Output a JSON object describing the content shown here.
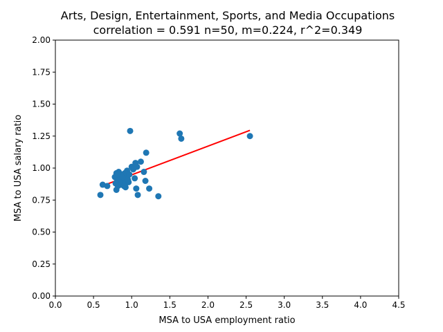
{
  "chart_data": {
    "type": "scatter",
    "title": "Arts, Design, Entertainment, Sports, and Media Occupations",
    "subtitle": "correlation = 0.591 n=50, m=0.224, r^2=0.349",
    "xlabel": "MSA to USA employment ratio",
    "ylabel": "MSA to USA salary ratio",
    "xlim": [
      0.0,
      4.5
    ],
    "ylim": [
      0.0,
      2.0
    ],
    "xticks": [
      "0.0",
      "0.5",
      "1.0",
      "1.5",
      "2.0",
      "2.5",
      "3.0",
      "3.5",
      "4.0",
      "4.5"
    ],
    "yticks": [
      "0.00",
      "0.25",
      "0.50",
      "0.75",
      "1.00",
      "1.25",
      "1.50",
      "1.75",
      "2.00"
    ],
    "grid": false,
    "point_color": "#1f77b4",
    "line_color": "#ff0000",
    "fit_line": {
      "x": [
        0.59,
        2.55
      ],
      "y": [
        0.855,
        1.295
      ]
    },
    "points": [
      {
        "x": 0.59,
        "y": 0.79
      },
      {
        "x": 0.62,
        "y": 0.87
      },
      {
        "x": 0.68,
        "y": 0.86
      },
      {
        "x": 0.78,
        "y": 0.93
      },
      {
        "x": 0.8,
        "y": 0.96
      },
      {
        "x": 0.8,
        "y": 0.83
      },
      {
        "x": 0.81,
        "y": 0.9
      },
      {
        "x": 0.82,
        "y": 0.86
      },
      {
        "x": 0.83,
        "y": 0.97
      },
      {
        "x": 0.84,
        "y": 0.94
      },
      {
        "x": 0.85,
        "y": 0.88
      },
      {
        "x": 0.86,
        "y": 0.92
      },
      {
        "x": 0.87,
        "y": 0.95
      },
      {
        "x": 0.88,
        "y": 0.87
      },
      {
        "x": 0.89,
        "y": 0.9
      },
      {
        "x": 0.9,
        "y": 0.93
      },
      {
        "x": 0.91,
        "y": 0.96
      },
      {
        "x": 0.92,
        "y": 0.85
      },
      {
        "x": 0.92,
        "y": 0.88
      },
      {
        "x": 0.93,
        "y": 0.91
      },
      {
        "x": 0.94,
        "y": 0.98
      },
      {
        "x": 0.95,
        "y": 0.94
      },
      {
        "x": 0.96,
        "y": 0.89
      },
      {
        "x": 0.98,
        "y": 1.29
      },
      {
        "x": 1.0,
        "y": 1.01
      },
      {
        "x": 1.02,
        "y": 0.99
      },
      {
        "x": 1.03,
        "y": 1.0
      },
      {
        "x": 1.04,
        "y": 0.92
      },
      {
        "x": 1.05,
        "y": 1.04
      },
      {
        "x": 1.06,
        "y": 0.84
      },
      {
        "x": 1.07,
        "y": 1.01
      },
      {
        "x": 1.08,
        "y": 0.79
      },
      {
        "x": 1.12,
        "y": 1.05
      },
      {
        "x": 1.16,
        "y": 0.97
      },
      {
        "x": 1.18,
        "y": 0.9
      },
      {
        "x": 1.19,
        "y": 1.12
      },
      {
        "x": 1.23,
        "y": 0.84
      },
      {
        "x": 1.35,
        "y": 0.78
      },
      {
        "x": 1.63,
        "y": 1.27
      },
      {
        "x": 1.65,
        "y": 1.23
      },
      {
        "x": 2.55,
        "y": 1.25
      },
      {
        "x": 0.82,
        "y": 0.95
      },
      {
        "x": 0.86,
        "y": 0.87
      },
      {
        "x": 0.88,
        "y": 0.93
      },
      {
        "x": 0.9,
        "y": 0.86
      },
      {
        "x": 0.93,
        "y": 0.96
      },
      {
        "x": 0.95,
        "y": 0.91
      },
      {
        "x": 0.84,
        "y": 0.89
      },
      {
        "x": 0.79,
        "y": 0.88
      },
      {
        "x": 0.97,
        "y": 0.95
      }
    ]
  }
}
